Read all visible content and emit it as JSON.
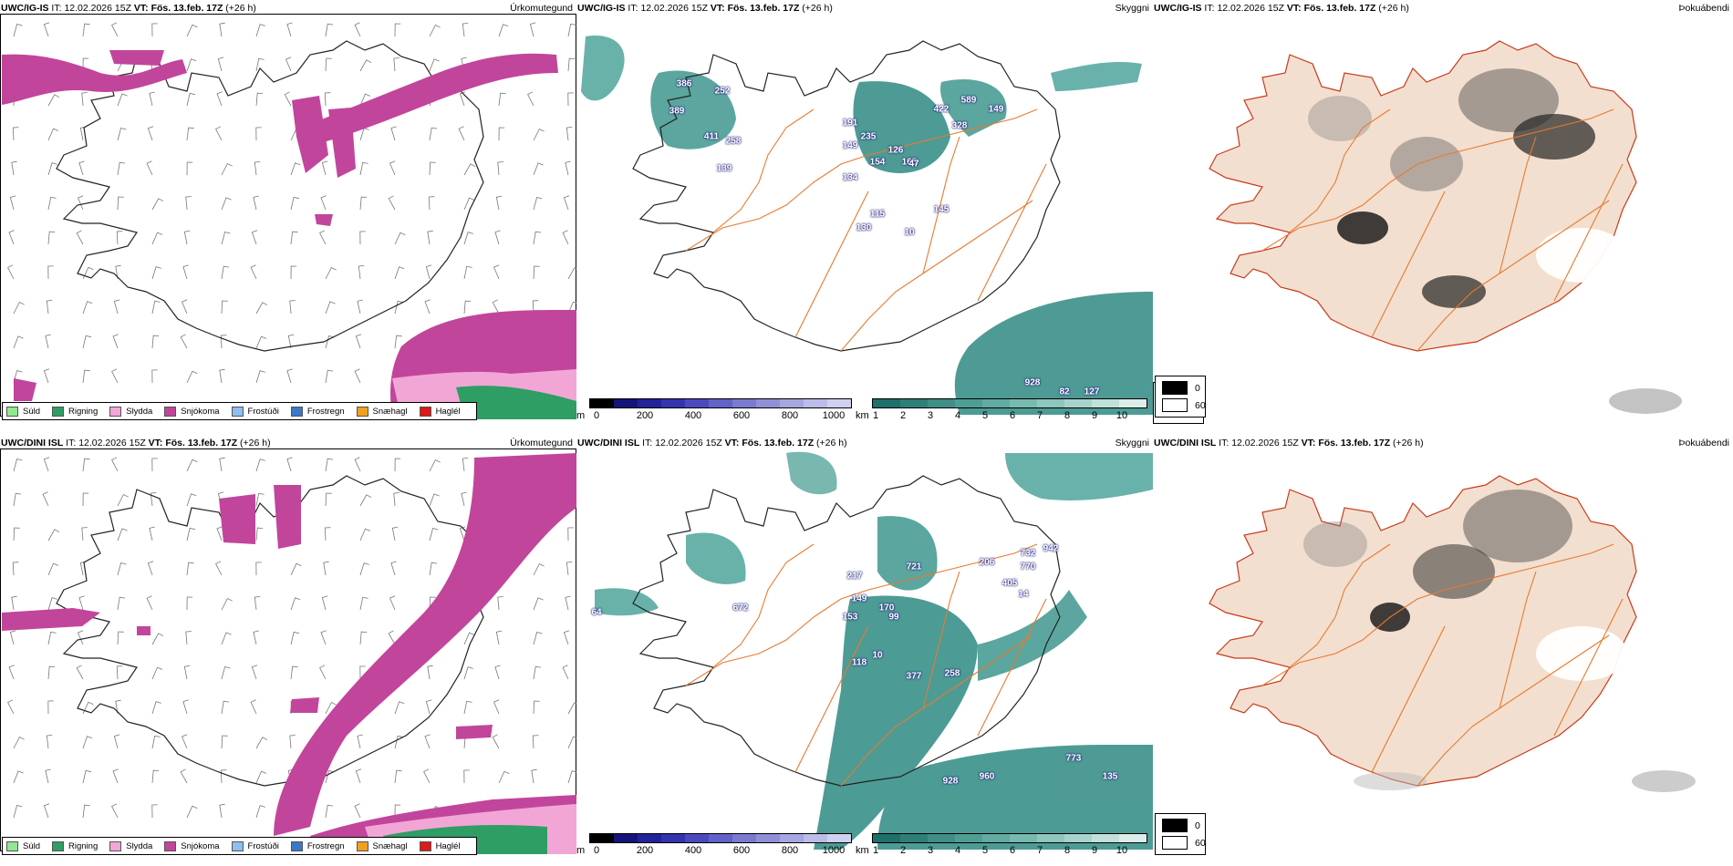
{
  "rows": [
    {
      "panels": [
        {
          "model": "UWC/IG-IS",
          "it_label": "IT:",
          "it": "12.02.2026 15Z",
          "vt_label": "VT:",
          "vt": "Fös. 13.feb. 17Z",
          "lead": "(+26 h)",
          "title": "Úrkomutegund"
        },
        {
          "model": "UWC/IG-IS",
          "it_label": "IT:",
          "it": "12.02.2026 15Z",
          "vt_label": "VT:",
          "vt": "Fös. 13.feb. 17Z",
          "lead": "(+26 h)",
          "title": "Skyggni"
        },
        {
          "model": "UWC/IG-IS",
          "it_label": "IT:",
          "it": "12.02.2026 15Z",
          "vt_label": "VT:",
          "vt": "Fös. 13.feb. 17Z",
          "lead": "(+26 h)",
          "title": "Þokuábendi"
        }
      ],
      "ceiling_labels": [
        "386",
        "252",
        "389",
        "411",
        "258",
        "139",
        "191",
        "149",
        "235",
        "154",
        "134",
        "126",
        "165",
        "422",
        "589",
        "328",
        "149",
        "47",
        "130",
        "115",
        "145",
        "10",
        "928",
        "82",
        "127"
      ]
    },
    {
      "panels": [
        {
          "model": "UWC/DINI ISL",
          "it_label": "IT:",
          "it": "12.02.2026 15Z",
          "vt_label": "VT:",
          "vt": "Fös. 13.feb. 17Z",
          "lead": "(+26 h)",
          "title": "Úrkomutegund"
        },
        {
          "model": "UWC/DINI ISL",
          "it_label": "IT:",
          "it": "12.02.2026 15Z",
          "vt_label": "VT:",
          "vt": "Fös. 13.feb. 17Z",
          "lead": "(+26 h)",
          "title": "Skyggni"
        },
        {
          "model": "UWC/DINI ISL",
          "it_label": "IT:",
          "it": "12.02.2026 15Z",
          "vt_label": "VT:",
          "vt": "Fös. 13.feb. 17Z",
          "lead": "(+26 h)",
          "title": "Þokuábendi"
        }
      ],
      "ceiling_labels": [
        "672",
        "217",
        "149",
        "153",
        "170",
        "99",
        "721",
        "206",
        "732",
        "942",
        "770",
        "405",
        "14",
        "118",
        "10",
        "377",
        "258",
        "928",
        "960",
        "773",
        "135",
        "64"
      ]
    }
  ],
  "precip_legend": [
    {
      "label": "Súld",
      "color": "#90e890"
    },
    {
      "label": "Rigning",
      "color": "#2e9e64"
    },
    {
      "label": "Slydda",
      "color": "#f2a6d6"
    },
    {
      "label": "Snjókoma",
      "color": "#c2459c"
    },
    {
      "label": "Frostúði",
      "color": "#8fbef0"
    },
    {
      "label": "Frostregn",
      "color": "#3a78c9"
    },
    {
      "label": "Snæhagl",
      "color": "#f0a020"
    },
    {
      "label": "Haglél",
      "color": "#e01818"
    }
  ],
  "ceiling_scale": {
    "unit": "m",
    "ticks": [
      "0",
      "200",
      "400",
      "600",
      "800",
      "1000"
    ],
    "colors": [
      "#000000",
      "#14147a",
      "#22229a",
      "#3434b0",
      "#4a4abe",
      "#6262c8",
      "#7a7ad0",
      "#9090d8",
      "#a6a6e0",
      "#bcbce8",
      "#d0d0f0"
    ]
  },
  "visibility_scale": {
    "unit": "km",
    "ticks": [
      "1",
      "2",
      "3",
      "4",
      "5",
      "6",
      "7",
      "8",
      "9",
      "10"
    ],
    "colors": [
      "#1f6f6a",
      "#2f7f78",
      "#3f8f86",
      "#4f9e94",
      "#62aba2",
      "#78b9b0",
      "#8fc6be",
      "#a8d3cc",
      "#c2e0da",
      "#dcede9"
    ]
  },
  "fog_legend": [
    {
      "label": "0",
      "color": "#000000"
    },
    {
      "label": "60",
      "color": "#ffffff"
    }
  ],
  "colors": {
    "precip_snow": "#c2459c",
    "precip_sleet": "#f2a6d6",
    "precip_rain": "#2e9e64",
    "visibility": "#2f8a83",
    "ceiling": "#2a2aa8",
    "land_fog": "#f3dfcf",
    "roads": "#e87a30",
    "rivers": "#8f9ef5"
  }
}
